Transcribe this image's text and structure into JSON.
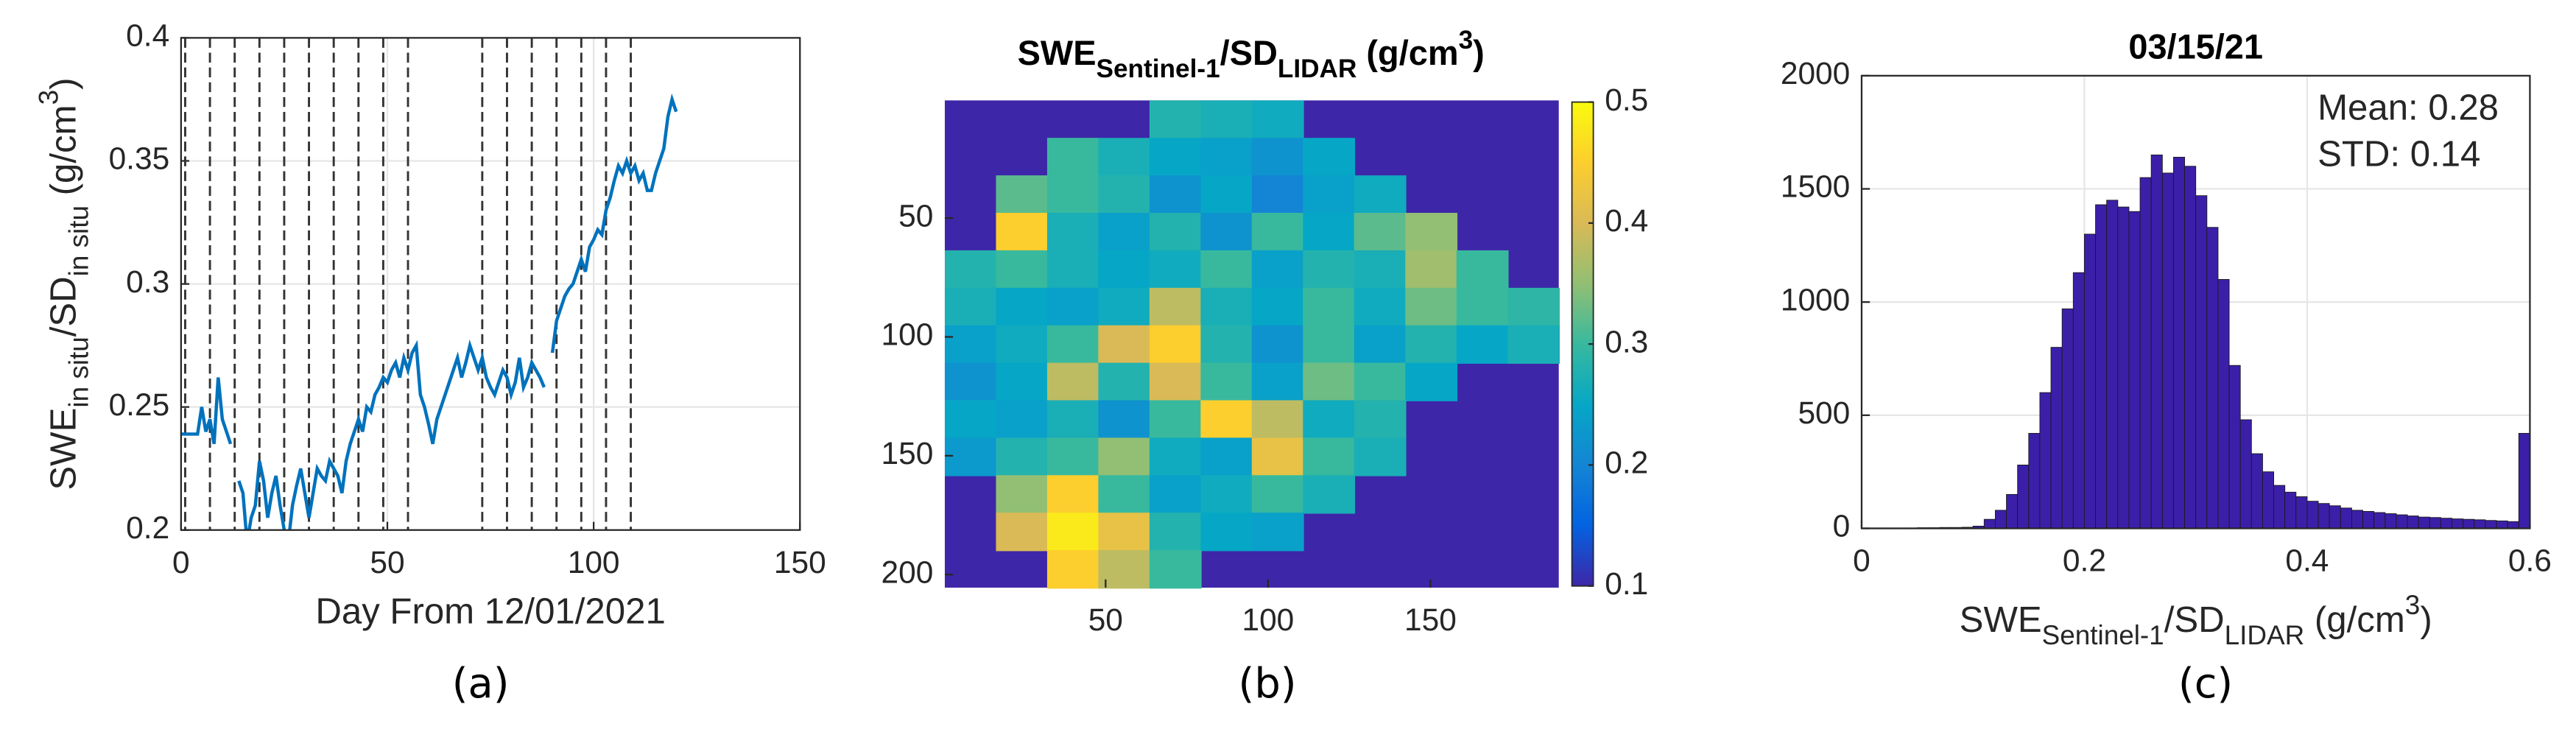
{
  "chart_data": [
    {
      "type": "line",
      "label": "(a)",
      "xlabel": "Day From 12/01/2021",
      "ylabel": [
        {
          "text": "SWE"
        },
        {
          "text": "in situ",
          "shift": "sub"
        },
        {
          "text": "/SD"
        },
        {
          "text": "in situ",
          "shift": "sub"
        },
        {
          "text": " (g/cm"
        },
        {
          "text": "3",
          "shift": "super"
        },
        {
          "text": ")"
        }
      ],
      "xlim": [
        0,
        150
      ],
      "xticks": [
        0,
        50,
        100,
        150
      ],
      "ylim": [
        0.2,
        0.4
      ],
      "yticks": [
        0.2,
        0.25,
        0.3,
        0.35,
        0.4
      ],
      "grid": true,
      "vlines": [
        1,
        7,
        13,
        19,
        25,
        31,
        37,
        43,
        49,
        55,
        73,
        79,
        85,
        91,
        97,
        103,
        109
      ],
      "vline_color": "#333333",
      "series": [
        {
          "color": "#0072bd",
          "x": [
            0,
            1,
            2,
            3,
            4,
            5,
            6,
            7,
            8,
            9,
            10,
            11,
            12,
            13,
            14,
            15,
            16,
            17,
            18,
            19,
            20,
            21,
            22,
            23,
            24,
            25,
            26,
            27,
            28,
            29,
            30,
            31,
            32,
            33,
            34,
            35,
            36,
            37,
            38,
            39,
            40,
            41,
            42,
            43,
            44,
            45,
            46,
            47,
            48,
            49,
            50,
            51,
            52,
            53,
            54,
            55,
            56,
            57,
            58,
            59,
            60,
            61,
            62,
            63,
            64,
            65,
            66,
            67,
            68,
            69,
            70,
            71,
            72,
            73,
            74,
            75,
            76,
            77,
            78,
            79,
            80,
            81,
            82,
            83,
            84,
            85,
            86,
            87,
            88,
            89,
            90,
            91,
            92,
            93,
            94,
            95,
            96,
            97,
            98,
            99,
            100,
            101,
            102,
            103,
            104,
            105,
            106,
            107,
            108,
            109,
            110,
            111,
            112,
            113,
            114,
            115,
            116,
            117,
            118,
            119,
            120
          ],
          "values": [
            0.239,
            0.239,
            0.239,
            0.239,
            0.239,
            0.25,
            0.24,
            0.245,
            0.235,
            0.262,
            0.245,
            0.24,
            0.235,
            null,
            0.22,
            0.215,
            0.195,
            0.205,
            0.21,
            0.228,
            0.22,
            0.205,
            0.215,
            0.222,
            0.21,
            0.2,
            0.195,
            0.21,
            0.218,
            0.225,
            0.215,
            0.205,
            0.215,
            0.225,
            0.222,
            0.22,
            0.228,
            0.225,
            0.222,
            0.215,
            0.228,
            0.235,
            0.24,
            0.245,
            0.24,
            0.25,
            0.248,
            0.255,
            0.258,
            0.262,
            0.26,
            0.265,
            0.268,
            0.262,
            0.27,
            0.265,
            0.272,
            0.275,
            0.255,
            0.25,
            0.243,
            0.235,
            0.245,
            0.25,
            0.255,
            0.26,
            0.265,
            0.27,
            0.262,
            0.268,
            0.275,
            0.27,
            0.265,
            0.27,
            0.262,
            0.258,
            0.255,
            0.26,
            0.265,
            0.262,
            0.255,
            0.26,
            0.27,
            0.258,
            0.262,
            0.268,
            0.265,
            0.262,
            0.258,
            null,
            0.272,
            0.285,
            0.29,
            0.295,
            0.298,
            0.3,
            0.305,
            0.31,
            0.305,
            0.315,
            0.318,
            0.322,
            0.32,
            0.33,
            0.335,
            0.342,
            0.348,
            0.345,
            0.35,
            0.345,
            0.348,
            0.342,
            0.345,
            0.338,
            0.338,
            0.345,
            0.35,
            0.355,
            0.368,
            0.375,
            0.37
          ]
        }
      ]
    },
    {
      "type": "heatmap",
      "label": "(b)",
      "title": [
        {
          "text": "SWE"
        },
        {
          "text": "Sentinel-1",
          "shift": "sub"
        },
        {
          "text": "/SD"
        },
        {
          "text": "LIDAR",
          "shift": "sub"
        },
        {
          "text": "  (g/cm"
        },
        {
          "text": "3",
          "shift": "super"
        },
        {
          "text": ")"
        }
      ],
      "xlim": [
        0.5,
        189.5
      ],
      "xticks": [
        50,
        100,
        150
      ],
      "ylim": [
        0.5,
        205.5
      ],
      "yticks": [
        50,
        100,
        150,
        200
      ],
      "y_reversed": true,
      "colormap": "parula",
      "nan_color": "#3e26a8",
      "colorbar": {
        "lim": [
          0.1,
          0.5
        ],
        "ticks": [
          0.1,
          0.2,
          0.3,
          0.4,
          0.5
        ]
      },
      "z": [
        [
          null,
          null,
          null,
          null,
          0.28,
          0.27,
          0.26,
          null,
          null,
          null,
          null,
          null
        ],
        [
          null,
          null,
          0.3,
          0.27,
          0.25,
          0.24,
          0.22,
          0.25,
          null,
          null,
          null,
          null
        ],
        [
          null,
          0.32,
          0.3,
          0.28,
          0.22,
          0.25,
          0.2,
          0.24,
          0.26,
          null,
          null,
          null
        ],
        [
          null,
          0.45,
          0.27,
          0.24,
          0.28,
          0.22,
          0.3,
          0.25,
          0.32,
          0.35,
          null,
          null
        ],
        [
          0.28,
          0.3,
          0.27,
          0.25,
          0.26,
          0.3,
          0.24,
          0.28,
          0.27,
          0.36,
          0.3,
          null
        ],
        [
          0.27,
          0.25,
          0.24,
          0.26,
          0.38,
          0.27,
          0.25,
          0.3,
          0.26,
          0.33,
          0.3,
          0.29
        ],
        [
          0.24,
          0.26,
          0.3,
          0.4,
          0.45,
          0.28,
          0.22,
          0.3,
          0.24,
          0.28,
          0.25,
          0.27
        ],
        [
          0.22,
          0.25,
          0.38,
          0.28,
          0.4,
          0.3,
          0.24,
          0.33,
          0.3,
          0.25,
          null,
          null
        ],
        [
          0.25,
          0.24,
          0.27,
          0.22,
          0.3,
          0.45,
          0.38,
          0.26,
          0.28,
          null,
          null,
          null
        ],
        [
          0.23,
          0.28,
          0.3,
          0.35,
          0.26,
          0.24,
          0.42,
          0.3,
          0.27,
          null,
          null,
          null
        ],
        [
          null,
          0.35,
          0.45,
          0.3,
          0.24,
          0.26,
          0.3,
          0.27,
          null,
          null,
          null,
          null
        ],
        [
          null,
          0.4,
          0.48,
          0.42,
          0.28,
          0.25,
          0.24,
          null,
          null,
          null,
          null,
          null
        ],
        [
          null,
          null,
          0.45,
          0.38,
          0.3,
          null,
          null,
          null,
          null,
          null,
          null,
          null
        ]
      ]
    },
    {
      "type": "histogram",
      "label": "(c)",
      "title": "03/15/21",
      "xlabel": [
        {
          "text": "SWE"
        },
        {
          "text": "Sentinel-1",
          "shift": "sub"
        },
        {
          "text": "/SD"
        },
        {
          "text": "LIDAR",
          "shift": "sub"
        },
        {
          "text": "  (g/cm"
        },
        {
          "text": "3",
          "shift": "super"
        },
        {
          "text": ")"
        }
      ],
      "annotations": [
        "Mean: 0.28",
        "STD: 0.14"
      ],
      "xlim": [
        0,
        0.6
      ],
      "xticks": [
        0,
        0.2,
        0.4,
        0.6
      ],
      "ylim": [
        0,
        2000
      ],
      "yticks": [
        0,
        500,
        1000,
        1500,
        2000
      ],
      "grid": true,
      "color": "#3b1fa8",
      "bins": [
        0,
        0.01,
        0.02,
        0.03,
        0.04,
        0.05,
        0.06,
        0.07,
        0.08,
        0.09,
        0.1,
        0.11,
        0.12,
        0.13,
        0.14,
        0.15,
        0.16,
        0.17,
        0.18,
        0.19,
        0.2,
        0.21,
        0.22,
        0.23,
        0.24,
        0.25,
        0.26,
        0.27,
        0.28,
        0.29,
        0.3,
        0.31,
        0.32,
        0.33,
        0.34,
        0.35,
        0.36,
        0.37,
        0.38,
        0.39,
        0.4,
        0.41,
        0.42,
        0.43,
        0.44,
        0.45,
        0.46,
        0.47,
        0.48,
        0.49,
        0.5,
        0.51,
        0.52,
        0.53,
        0.54,
        0.55,
        0.56,
        0.57,
        0.58,
        0.59,
        0.6
      ],
      "values": [
        2,
        2,
        2,
        2,
        2,
        3,
        3,
        4,
        4,
        5,
        10,
        40,
        80,
        150,
        280,
        420,
        600,
        800,
        970,
        1130,
        1300,
        1430,
        1450,
        1420,
        1400,
        1550,
        1650,
        1570,
        1640,
        1600,
        1470,
        1330,
        1100,
        720,
        480,
        330,
        250,
        190,
        160,
        140,
        120,
        110,
        100,
        90,
        80,
        75,
        70,
        65,
        60,
        55,
        50,
        48,
        45,
        42,
        40,
        38,
        35,
        33,
        30,
        420
      ]
    }
  ]
}
